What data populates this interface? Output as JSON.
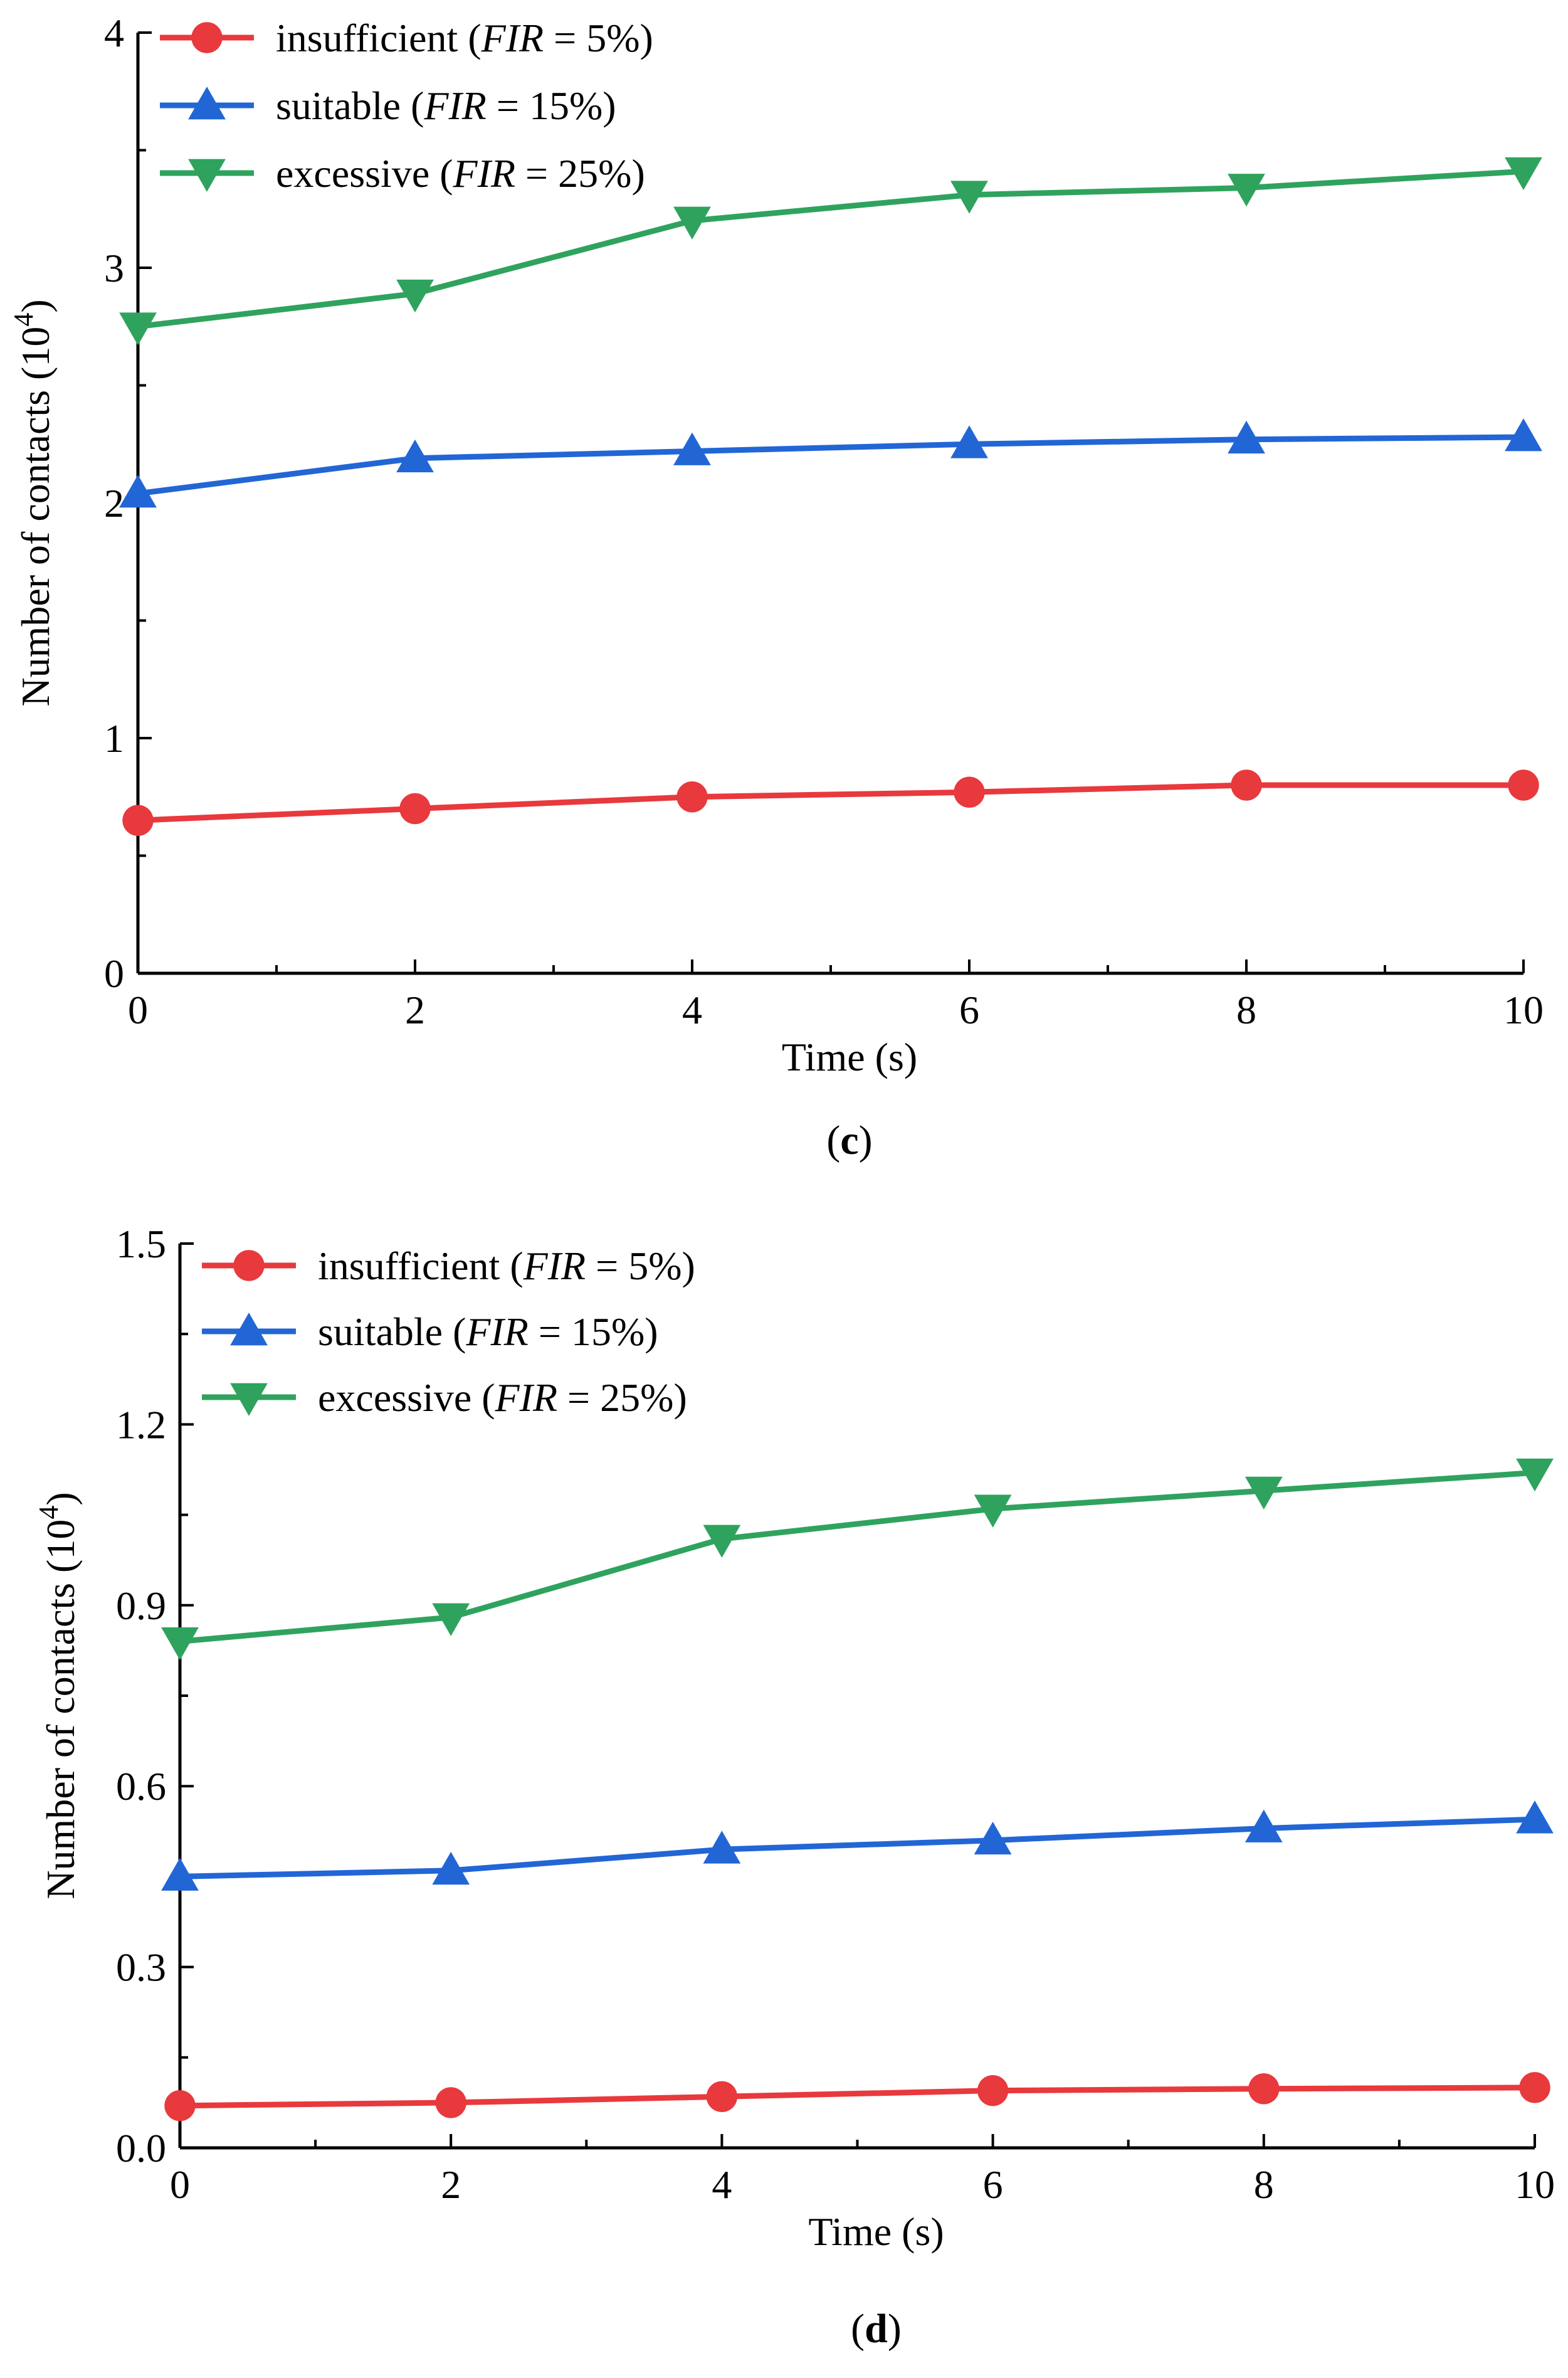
{
  "chart_data": [
    {
      "type": "line",
      "panel_label": "c",
      "xlabel": "Time (s)",
      "ylabel_prefix": "Number of  contacts (10",
      "ylabel_exponent": "4",
      "ylabel_suffix": ")",
      "x": [
        0,
        2,
        4,
        6,
        8,
        10
      ],
      "xlim": [
        0,
        10
      ],
      "ylim": [
        0,
        4
      ],
      "x_ticks": [
        "0",
        "2",
        "4",
        "6",
        "8",
        "10"
      ],
      "y_ticks": [
        "0",
        "1",
        "2",
        "3",
        "4"
      ],
      "legend_position": "top-left",
      "grid": false,
      "series": [
        {
          "name": "insufficient",
          "fir_label": "FIR",
          "fir_value": " = 5%)",
          "color": "#E8393D",
          "marker": "circle",
          "values": [
            0.65,
            0.7,
            0.75,
            0.77,
            0.8,
            0.8
          ]
        },
        {
          "name": "suitable",
          "fir_label": "FIR",
          "fir_value": " = 15%)",
          "color": "#2266D6",
          "marker": "triangle-up",
          "values": [
            2.04,
            2.19,
            2.22,
            2.25,
            2.27,
            2.28
          ]
        },
        {
          "name": "excessive",
          "fir_label": "FIR",
          "fir_value": " = 25%)",
          "color": "#2FA35E",
          "marker": "triangle-down",
          "values": [
            2.75,
            2.89,
            3.2,
            3.31,
            3.34,
            3.41
          ]
        }
      ]
    },
    {
      "type": "line",
      "panel_label": "d",
      "xlabel": "Time (s)",
      "ylabel_prefix": "Number of contacts (10",
      "ylabel_exponent": "4",
      "ylabel_suffix": ")",
      "x": [
        0,
        2,
        4,
        6,
        8,
        10
      ],
      "xlim": [
        0,
        10
      ],
      "ylim": [
        0,
        1.5
      ],
      "x_ticks": [
        "0",
        "2",
        "4",
        "6",
        "8",
        "10"
      ],
      "y_ticks": [
        "0.0",
        "0.3",
        "0.6",
        "0.9",
        "1.2",
        "1.5"
      ],
      "legend_position": "top-left",
      "grid": false,
      "series": [
        {
          "name": "insufficient",
          "fir_label": "FIR",
          "fir_value": " = 5%)",
          "color": "#E8393D",
          "marker": "circle",
          "values": [
            0.07,
            0.075,
            0.085,
            0.095,
            0.098,
            0.1
          ]
        },
        {
          "name": "suitable",
          "fir_label": "FIR",
          "fir_value": " = 15%)",
          "color": "#2266D6",
          "marker": "triangle-up",
          "values": [
            0.45,
            0.46,
            0.495,
            0.51,
            0.53,
            0.545
          ]
        },
        {
          "name": "excessive",
          "fir_label": "FIR",
          "fir_value": " = 25%)",
          "color": "#2FA35E",
          "marker": "triangle-down",
          "values": [
            0.84,
            0.88,
            1.01,
            1.06,
            1.09,
            1.12
          ]
        }
      ]
    }
  ]
}
